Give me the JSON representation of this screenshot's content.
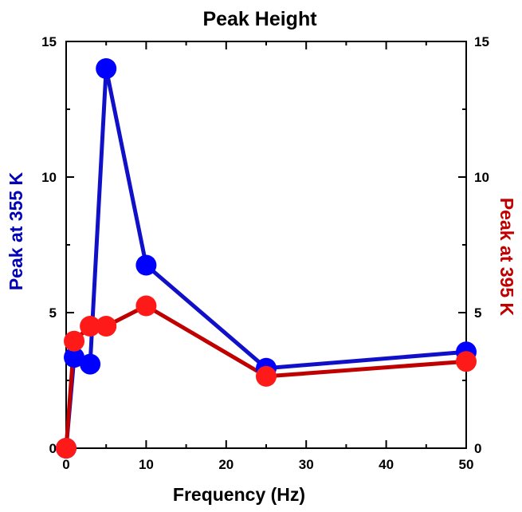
{
  "chart_data": {
    "type": "line",
    "title": "Peak Height",
    "xlabel": "Frequency (Hz)",
    "ylabel_left": "Peak at 355 K",
    "ylabel_right": "Peak at 395 K",
    "xlim": [
      0,
      50
    ],
    "ylim_left": [
      0,
      15
    ],
    "ylim_right": [
      0,
      15
    ],
    "x_ticks": [
      "0",
      "10",
      "20",
      "30",
      "40",
      "50"
    ],
    "x_tick_values": [
      0,
      10,
      20,
      30,
      40,
      50
    ],
    "y_ticks": [
      "0",
      "5",
      "10",
      "15"
    ],
    "y_tick_values": [
      0,
      5,
      10,
      15
    ],
    "grid": false,
    "series": [
      {
        "name": "Peak at 355 K",
        "axis": "left",
        "color": "#0000ff",
        "line_color": "#1010c8",
        "x": [
          0,
          1,
          3,
          5,
          10,
          25,
          50
        ],
        "y": [
          0,
          3.35,
          3.1,
          14.0,
          6.75,
          2.95,
          3.55
        ]
      },
      {
        "name": "Peak at 395 K",
        "axis": "right",
        "color": "#ff1a1a",
        "line_color": "#c00000",
        "x": [
          0,
          1,
          3,
          5,
          10,
          25,
          50
        ],
        "y": [
          0,
          3.95,
          4.5,
          4.5,
          5.25,
          2.65,
          3.2
        ]
      }
    ]
  }
}
